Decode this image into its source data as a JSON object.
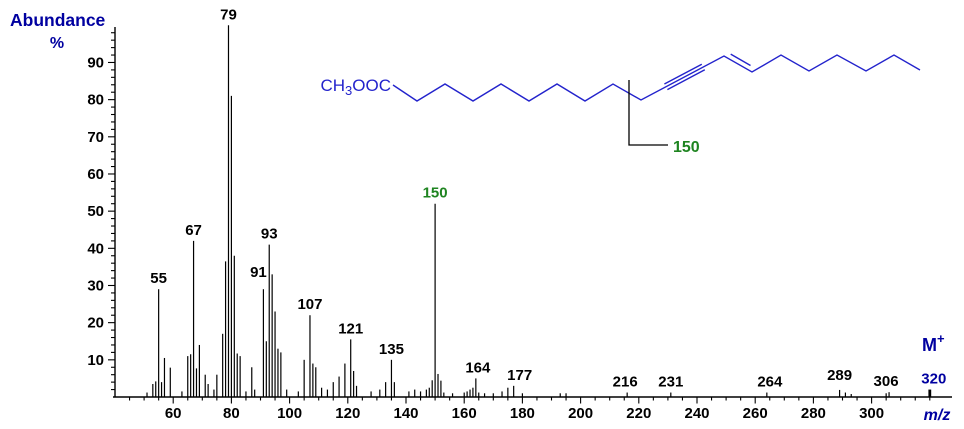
{
  "colors": {
    "text_blue": "#0000A0",
    "chain_blue": "#2323CC",
    "label_green": "#1E8420",
    "black": "#000000"
  },
  "axis_titles": {
    "y_line1": "Abundance",
    "y_line2": "%",
    "x": "m/z"
  },
  "molecular_ion": {
    "symbol": "M",
    "charge": "+"
  },
  "structure": {
    "ester_label": {
      "prefix": "CH",
      "sub": "3",
      "suffix": "OOC"
    },
    "fragment_label": "150",
    "chain_points": [
      [
        393,
        85
      ],
      [
        417,
        101
      ],
      [
        445,
        84
      ],
      [
        473,
        101
      ],
      [
        501,
        84
      ],
      [
        529,
        101
      ],
      [
        557,
        84
      ],
      [
        585,
        101
      ],
      [
        613,
        84
      ],
      [
        641,
        100
      ],
      [
        724,
        56
      ],
      [
        752,
        72
      ],
      [
        781,
        55
      ],
      [
        809,
        71
      ],
      [
        837,
        55
      ],
      [
        866,
        71
      ],
      [
        894,
        55
      ],
      [
        920,
        70
      ]
    ],
    "triple_bond_lines": [
      [
        [
          667.4,
          89.6
        ],
        [
          704.8,
          69.8
        ]
      ],
      [
        [
          664.4,
          84.0
        ],
        [
          701.8,
          64.2
        ]
      ]
    ],
    "double_bond_line": [
      [
        730.7,
        54.1
      ],
      [
        750.5,
        65.5
      ]
    ],
    "fragment_line": [
      [
        629,
        80
      ],
      [
        629,
        145
      ],
      [
        668,
        145
      ]
    ]
  },
  "chart_data": {
    "type": "bar",
    "subtype": "mass-spectrum",
    "title": "",
    "xlabel": "m/z",
    "ylabel": "Abundance %",
    "xlim": [
      40,
      322
    ],
    "ylim": [
      0,
      100
    ],
    "grid": false,
    "x_major_ticks": [
      60,
      80,
      100,
      120,
      140,
      160,
      180,
      200,
      220,
      240,
      260,
      280,
      300
    ],
    "x_minor_step": 5,
    "y_major_ticks": [
      10,
      20,
      30,
      40,
      50,
      60,
      70,
      80,
      90
    ],
    "y_minor_step": 2,
    "peaks": [
      [
        51,
        1.2
      ],
      [
        53,
        3.5
      ],
      [
        54,
        4.2
      ],
      [
        55,
        29
      ],
      [
        56,
        4
      ],
      [
        57,
        10.5
      ],
      [
        59,
        7.9
      ],
      [
        63,
        1.5
      ],
      [
        65,
        11
      ],
      [
        66,
        11.5
      ],
      [
        67,
        42
      ],
      [
        68,
        7.7
      ],
      [
        69,
        14
      ],
      [
        71,
        6
      ],
      [
        72,
        3.5
      ],
      [
        74,
        2
      ],
      [
        75,
        6
      ],
      [
        77,
        17
      ],
      [
        78,
        36.5
      ],
      [
        79,
        100
      ],
      [
        80,
        81
      ],
      [
        81,
        38
      ],
      [
        82,
        11.7
      ],
      [
        83,
        11
      ],
      [
        85,
        1.5
      ],
      [
        87,
        8
      ],
      [
        88,
        2
      ],
      [
        91,
        29
      ],
      [
        92,
        15
      ],
      [
        93,
        41
      ],
      [
        94,
        33
      ],
      [
        95,
        23
      ],
      [
        96,
        13
      ],
      [
        97,
        12
      ],
      [
        99,
        2
      ],
      [
        103,
        1.5
      ],
      [
        105,
        10
      ],
      [
        107,
        22
      ],
      [
        108,
        9
      ],
      [
        109,
        8
      ],
      [
        111,
        2.5
      ],
      [
        113,
        2
      ],
      [
        115,
        4
      ],
      [
        117,
        5.5
      ],
      [
        119,
        9
      ],
      [
        121,
        15.5
      ],
      [
        122,
        7
      ],
      [
        123,
        3
      ],
      [
        128,
        1.5
      ],
      [
        131,
        2
      ],
      [
        133,
        4
      ],
      [
        135,
        10
      ],
      [
        136,
        4
      ],
      [
        141,
        1.5
      ],
      [
        143,
        2
      ],
      [
        145,
        1.5
      ],
      [
        147,
        2
      ],
      [
        148,
        2.5
      ],
      [
        149,
        4.5
      ],
      [
        150,
        52
      ],
      [
        151,
        6.2
      ],
      [
        152,
        4.4
      ],
      [
        153,
        1.2
      ],
      [
        156,
        1
      ],
      [
        160,
        1.2
      ],
      [
        161,
        1.5
      ],
      [
        162,
        2
      ],
      [
        163,
        2.5
      ],
      [
        164,
        5
      ],
      [
        165,
        1.2
      ],
      [
        167,
        1
      ],
      [
        170,
        1
      ],
      [
        173,
        1.5
      ],
      [
        175,
        2.5
      ],
      [
        177,
        3
      ],
      [
        180,
        1
      ],
      [
        193,
        1
      ],
      [
        195,
        1
      ],
      [
        216,
        1.2
      ],
      [
        231,
        1.2
      ],
      [
        264,
        1.2
      ],
      [
        289,
        1.9
      ],
      [
        291,
        1.2
      ],
      [
        293,
        0.8
      ],
      [
        305,
        1
      ],
      [
        306,
        1.3
      ],
      [
        320,
        2
      ]
    ],
    "labeled_peaks": [
      {
        "mz": 55,
        "text": "55"
      },
      {
        "mz": 67,
        "text": "67"
      },
      {
        "mz": 79,
        "text": "79"
      },
      {
        "mz": 91,
        "text": "91",
        "dx": -5,
        "dy": -6
      },
      {
        "mz": 93,
        "text": "93"
      },
      {
        "mz": 107,
        "text": "107"
      },
      {
        "mz": 121,
        "text": "121"
      },
      {
        "mz": 135,
        "text": "135"
      },
      {
        "mz": 150,
        "text": "150",
        "color": "green"
      },
      {
        "mz": 164,
        "text": "164",
        "dx": 2
      },
      {
        "mz": 177,
        "text": "177",
        "dx": 6
      },
      {
        "mz": 216,
        "text": "216",
        "dx": -2
      },
      {
        "mz": 231,
        "text": "231"
      },
      {
        "mz": 264,
        "text": "264",
        "dx": 3
      },
      {
        "mz": 289,
        "text": "289",
        "dy": -4
      },
      {
        "mz": 306,
        "text": "306",
        "dx": -3
      },
      {
        "mz": 320,
        "text": "320",
        "dx": 4,
        "color": "blue"
      }
    ]
  }
}
